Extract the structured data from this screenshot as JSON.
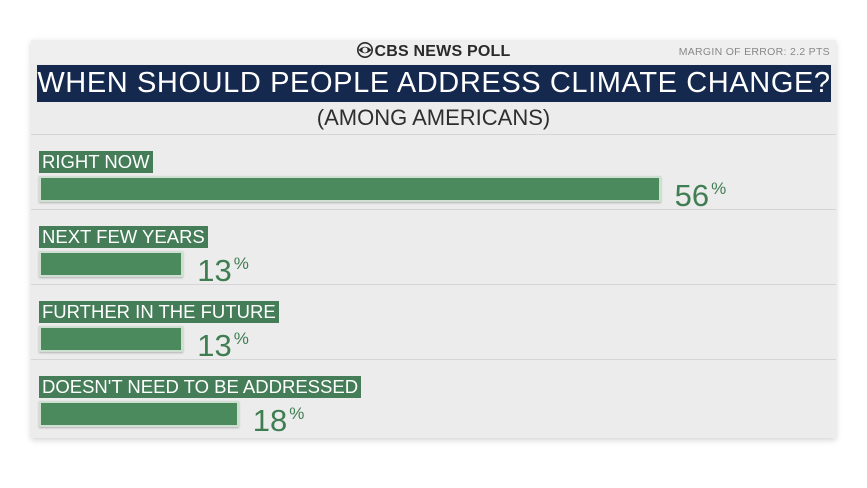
{
  "header": {
    "brand": "CBS NEWS POLL",
    "margin_of_error": "MARGIN OF ERROR: 2.2 PTS"
  },
  "colors": {
    "title_bar": "#15284d",
    "bar": "#4a8a5c",
    "label_bg": "#447d57",
    "value_text": "#3f7d52"
  },
  "chart_data": {
    "type": "bar",
    "orientation": "horizontal",
    "title": "WHEN SHOULD PEOPLE ADDRESS CLIMATE CHANGE?",
    "subtitle": "(AMONG AMERICANS)",
    "categories": [
      "RIGHT NOW",
      "NEXT FEW YEARS",
      "FURTHER IN THE FUTURE",
      "DOESN'T NEED TO BE ADDRESSED"
    ],
    "values": [
      56,
      13,
      13,
      18
    ],
    "unit": "%",
    "xlim": [
      0,
      100
    ],
    "grid": false,
    "legend": "none"
  }
}
